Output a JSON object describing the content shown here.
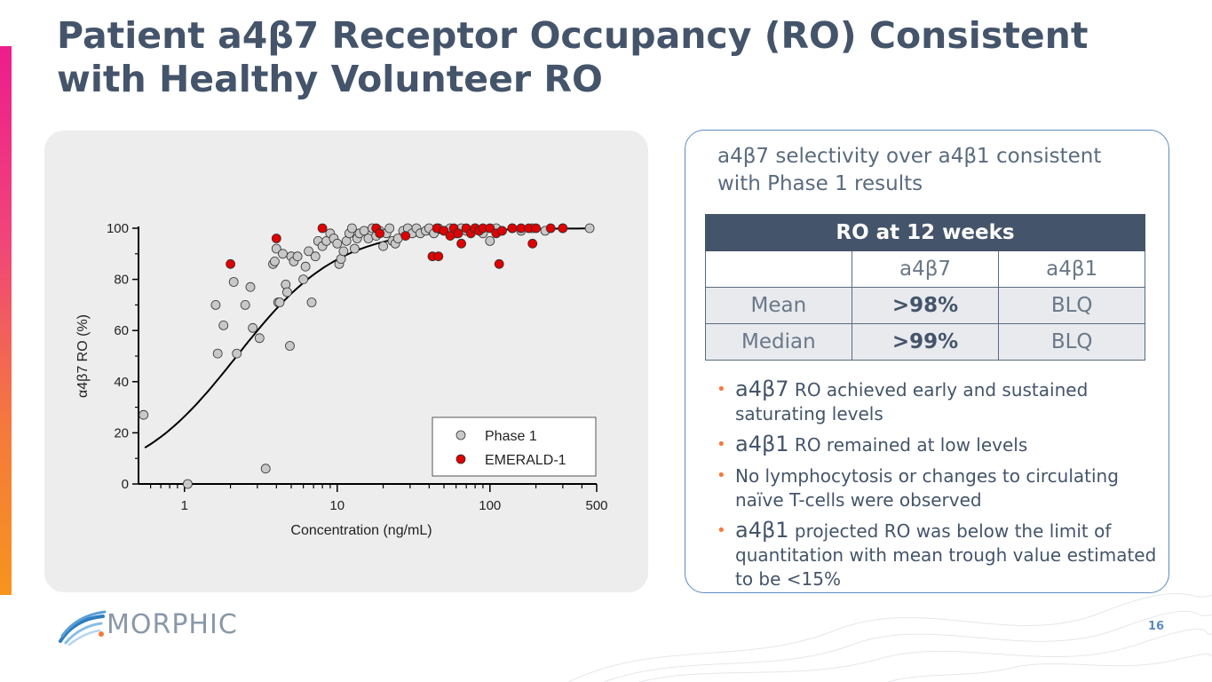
{
  "title": "Patient a4β7 Receptor Occupancy (RO) Consistent with Healthy Volunteer RO",
  "colors": {
    "accent_top": "#ee1c8c",
    "accent_bottom": "#f7941d",
    "slate": "#44546a",
    "panel_border": "#5b8bc0",
    "bullet": "#f47a3c"
  },
  "chart_data": {
    "type": "scatter",
    "xscale": "log",
    "xlim": [
      0.5,
      500
    ],
    "ylim": [
      0,
      100
    ],
    "xlabel": "Concentration (ng/mL)",
    "ylabel": "α4β7 RO (%)",
    "x_ticks": [
      1,
      10,
      100,
      500
    ],
    "x_tick_labels": [
      "1",
      "10",
      "100",
      "500"
    ],
    "y_ticks": [
      0,
      20,
      40,
      60,
      80,
      100
    ],
    "y_tick_labels": [
      "0",
      "20",
      "40",
      "60",
      "80",
      "100"
    ],
    "legend": [
      "Phase 1",
      "EMERALD-1"
    ],
    "legend_position": "bottom-right",
    "fit_curve": {
      "model": "emax",
      "emax": 100,
      "ec50": 2.2,
      "hill": 1.3,
      "x_range": [
        0.55,
        450
      ]
    },
    "series": [
      {
        "name": "Phase 1",
        "color": "#c8c8c8",
        "points": [
          [
            0.54,
            27
          ],
          [
            1.05,
            0
          ],
          [
            1.6,
            70
          ],
          [
            1.65,
            51
          ],
          [
            1.8,
            62
          ],
          [
            2.1,
            79
          ],
          [
            2.2,
            51
          ],
          [
            2.5,
            70
          ],
          [
            2.7,
            77
          ],
          [
            2.8,
            61
          ],
          [
            3.1,
            57
          ],
          [
            3.4,
            6
          ],
          [
            3.8,
            86
          ],
          [
            3.9,
            87
          ],
          [
            4.0,
            92
          ],
          [
            4.1,
            71
          ],
          [
            4.2,
            71
          ],
          [
            4.4,
            90
          ],
          [
            4.6,
            78
          ],
          [
            4.7,
            75
          ],
          [
            4.9,
            54
          ],
          [
            5.0,
            89
          ],
          [
            5.2,
            87
          ],
          [
            5.5,
            89
          ],
          [
            6.0,
            80
          ],
          [
            6.2,
            85
          ],
          [
            6.5,
            91
          ],
          [
            6.8,
            71
          ],
          [
            7.2,
            89
          ],
          [
            7.5,
            95
          ],
          [
            8.0,
            93
          ],
          [
            8.5,
            95
          ],
          [
            9.0,
            98
          ],
          [
            9.5,
            96
          ],
          [
            10,
            94
          ],
          [
            10.3,
            86
          ],
          [
            10.6,
            88
          ],
          [
            11,
            91
          ],
          [
            11.5,
            95
          ],
          [
            12,
            98
          ],
          [
            12.5,
            100
          ],
          [
            13,
            92
          ],
          [
            13.5,
            96
          ],
          [
            14,
            98
          ],
          [
            15,
            99
          ],
          [
            16,
            96
          ],
          [
            17,
            100
          ],
          [
            18,
            97
          ],
          [
            19,
            99
          ],
          [
            20,
            93
          ],
          [
            21,
            98
          ],
          [
            22,
            100
          ],
          [
            23,
            95
          ],
          [
            24,
            94
          ],
          [
            25,
            96
          ],
          [
            27,
            99
          ],
          [
            29,
            100
          ],
          [
            31,
            98
          ],
          [
            33,
            100
          ],
          [
            35,
            98
          ],
          [
            38,
            99
          ],
          [
            40,
            100
          ],
          [
            43,
            98
          ],
          [
            46,
            100
          ],
          [
            50,
            99
          ],
          [
            55,
            100
          ],
          [
            60,
            98
          ],
          [
            65,
            100
          ],
          [
            70,
            99
          ],
          [
            80,
            100
          ],
          [
            90,
            98
          ],
          [
            100,
            95
          ],
          [
            110,
            100
          ],
          [
            120,
            99
          ],
          [
            140,
            100
          ],
          [
            160,
            99
          ],
          [
            190,
            100
          ],
          [
            230,
            99
          ],
          [
            300,
            100
          ],
          [
            450,
            100
          ]
        ]
      },
      {
        "name": "EMERALD-1",
        "color": "#e00000",
        "points": [
          [
            2.0,
            86
          ],
          [
            4.0,
            96
          ],
          [
            8.0,
            100
          ],
          [
            18,
            100
          ],
          [
            19,
            98
          ],
          [
            28,
            97
          ],
          [
            42,
            89
          ],
          [
            45,
            100
          ],
          [
            46,
            89
          ],
          [
            50,
            99
          ],
          [
            55,
            97
          ],
          [
            58,
            100
          ],
          [
            62,
            98
          ],
          [
            65,
            94
          ],
          [
            70,
            100
          ],
          [
            75,
            98
          ],
          [
            80,
            100
          ],
          [
            85,
            99
          ],
          [
            90,
            100
          ],
          [
            100,
            100
          ],
          [
            110,
            98
          ],
          [
            115,
            86
          ],
          [
            120,
            99
          ],
          [
            140,
            100
          ],
          [
            160,
            100
          ],
          [
            180,
            100
          ],
          [
            190,
            94
          ],
          [
            200,
            100
          ],
          [
            250,
            100
          ],
          [
            300,
            100
          ]
        ]
      }
    ]
  },
  "info": {
    "heading": "a4β7 selectivity over a4β1 consistent with Phase 1 results",
    "table": {
      "header": "RO at 12 weeks",
      "columns": [
        "",
        "a4β7",
        "a4β1"
      ],
      "rows": [
        {
          "label": "Mean",
          "a4b7": ">98%",
          "a4b1": "BLQ"
        },
        {
          "label": "Median",
          "a4b7": ">99%",
          "a4b1": "BLQ"
        }
      ]
    },
    "bullets": [
      {
        "lead": "a4β7",
        "rest": " RO achieved early and sustained saturating levels"
      },
      {
        "lead": "a4β1",
        "rest": " RO remained at low levels"
      },
      {
        "lead": "",
        "rest": "No lymphocytosis or changes to circulating naïve T-cells were observed"
      },
      {
        "lead": "a4β1",
        "rest": " projected RO was below the limit of quantitation with mean trough value estimated to be <15%"
      }
    ]
  },
  "footer": {
    "logo_text": "MORPHIC",
    "page_number": "16"
  }
}
